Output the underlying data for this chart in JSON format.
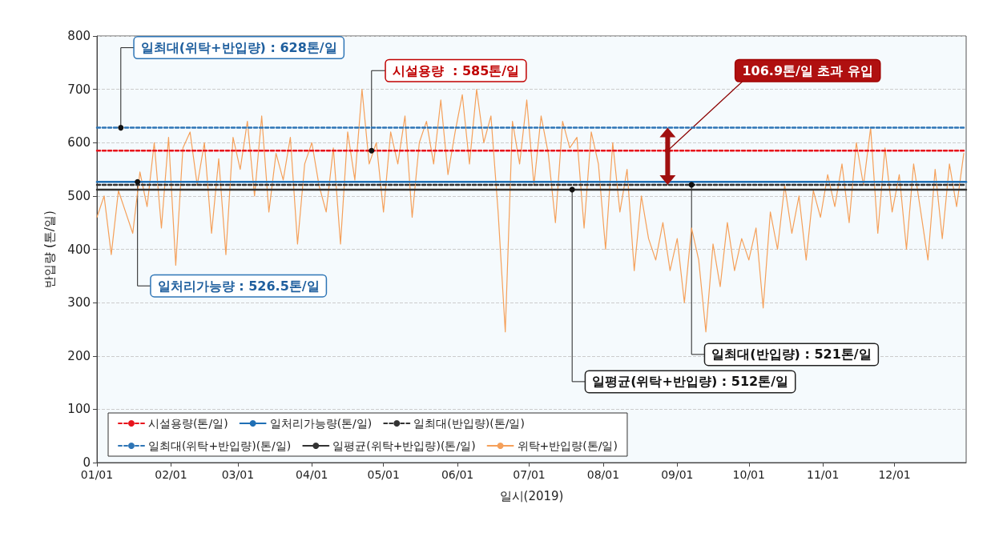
{
  "chart_data": {
    "type": "line",
    "xlabel": "일시(2019)",
    "ylabel": "반입량 (톤/일)",
    "xlim": [
      "2019-01-01",
      "2019-12-31"
    ],
    "xticks": [
      {
        "value": "2019-01-01",
        "label": "01/01"
      },
      {
        "value": "2019-02-01",
        "label": "02/01"
      },
      {
        "value": "2019-03-01",
        "label": "03/01"
      },
      {
        "value": "2019-04-01",
        "label": "04/01"
      },
      {
        "value": "2019-05-01",
        "label": "05/01"
      },
      {
        "value": "2019-06-01",
        "label": "06/01"
      },
      {
        "value": "2019-07-01",
        "label": "07/01"
      },
      {
        "value": "2019-08-01",
        "label": "08/01"
      },
      {
        "value": "2019-09-01",
        "label": "09/01"
      },
      {
        "value": "2019-10-01",
        "label": "10/01"
      },
      {
        "value": "2019-11-01",
        "label": "11/01"
      },
      {
        "value": "2019-12-01",
        "label": "12/01"
      }
    ],
    "ylim": [
      0,
      800
    ],
    "yticks": [
      0,
      100,
      200,
      300,
      400,
      500,
      600,
      700,
      800
    ],
    "grid": "y",
    "legend": "bottom left",
    "marker": "none",
    "series": [
      {
        "name": "시설용량(톤/일)",
        "color": "#e8141c",
        "line_style": "dashed",
        "x": [
          "2019-01-01",
          "2019-12-31"
        ],
        "values": [
          585,
          585
        ]
      },
      {
        "name": "일처리가능량(톤/일)",
        "color": "#1f6fb5",
        "line_style": "solid",
        "x": [
          "2019-01-01",
          "2019-12-31"
        ],
        "values": [
          526.5,
          526.5
        ]
      },
      {
        "name": "일최대(반입량)(톤/일)",
        "color": "#333333",
        "line_style": "dashed",
        "x": [
          "2019-01-01",
          "2019-12-31"
        ],
        "values": [
          521,
          521
        ]
      },
      {
        "name": "일최대(위탁+반입량)(톤/일)",
        "color": "#2e75b6",
        "line_style": "dashed",
        "x": [
          "2019-01-01",
          "2019-12-31"
        ],
        "values": [
          628,
          628
        ]
      },
      {
        "name": "일평균(위탁+반입량)(톤/일)",
        "color": "#333333",
        "line_style": "solid",
        "x": [
          "2019-01-01",
          "2019-12-31"
        ],
        "values": [
          512,
          512
        ]
      },
      {
        "name": "위탁+반입량(톤/일)",
        "color": "#f5a05a",
        "line_style": "solid",
        "x": [
          "2019-01-01",
          "2019-01-04",
          "2019-01-07",
          "2019-01-10",
          "2019-01-13",
          "2019-01-16",
          "2019-01-19",
          "2019-01-22",
          "2019-01-25",
          "2019-01-28",
          "2019-01-31",
          "2019-02-03",
          "2019-02-06",
          "2019-02-09",
          "2019-02-12",
          "2019-02-15",
          "2019-02-18",
          "2019-02-21",
          "2019-02-24",
          "2019-02-27",
          "2019-03-02",
          "2019-03-05",
          "2019-03-08",
          "2019-03-11",
          "2019-03-14",
          "2019-03-17",
          "2019-03-20",
          "2019-03-23",
          "2019-03-26",
          "2019-03-29",
          "2019-04-01",
          "2019-04-04",
          "2019-04-07",
          "2019-04-10",
          "2019-04-13",
          "2019-04-16",
          "2019-04-19",
          "2019-04-22",
          "2019-04-25",
          "2019-04-28",
          "2019-05-01",
          "2019-05-04",
          "2019-05-07",
          "2019-05-10",
          "2019-05-13",
          "2019-05-16",
          "2019-05-19",
          "2019-05-22",
          "2019-05-25",
          "2019-05-28",
          "2019-05-31",
          "2019-06-03",
          "2019-06-06",
          "2019-06-09",
          "2019-06-12",
          "2019-06-15",
          "2019-06-18",
          "2019-06-21",
          "2019-06-24",
          "2019-06-27",
          "2019-06-30",
          "2019-07-03",
          "2019-07-06",
          "2019-07-09",
          "2019-07-12",
          "2019-07-15",
          "2019-07-18",
          "2019-07-21",
          "2019-07-24",
          "2019-07-27",
          "2019-07-30",
          "2019-08-02",
          "2019-08-05",
          "2019-08-08",
          "2019-08-11",
          "2019-08-14",
          "2019-08-17",
          "2019-08-20",
          "2019-08-23",
          "2019-08-26",
          "2019-08-29",
          "2019-09-01",
          "2019-09-04",
          "2019-09-07",
          "2019-09-10",
          "2019-09-13",
          "2019-09-16",
          "2019-09-19",
          "2019-09-22",
          "2019-09-25",
          "2019-09-28",
          "2019-10-01",
          "2019-10-04",
          "2019-10-07",
          "2019-10-10",
          "2019-10-13",
          "2019-10-16",
          "2019-10-19",
          "2019-10-22",
          "2019-10-25",
          "2019-10-28",
          "2019-10-31",
          "2019-11-03",
          "2019-11-06",
          "2019-11-09",
          "2019-11-12",
          "2019-11-15",
          "2019-11-18",
          "2019-11-21",
          "2019-11-24",
          "2019-11-27",
          "2019-11-30",
          "2019-12-03",
          "2019-12-06",
          "2019-12-09",
          "2019-12-12",
          "2019-12-15",
          "2019-12-18",
          "2019-12-21",
          "2019-12-24",
          "2019-12-27",
          "2019-12-30"
        ],
        "values": [
          460,
          500,
          390,
          510,
          470,
          430,
          545,
          480,
          600,
          440,
          610,
          370,
          590,
          620,
          520,
          600,
          430,
          570,
          390,
          610,
          550,
          640,
          500,
          650,
          470,
          580,
          530,
          610,
          410,
          560,
          600,
          520,
          470,
          590,
          410,
          620,
          530,
          700,
          560,
          600,
          470,
          620,
          560,
          650,
          460,
          600,
          640,
          560,
          680,
          540,
          620,
          690,
          560,
          700,
          600,
          650,
          470,
          245,
          640,
          560,
          680,
          520,
          650,
          580,
          450,
          640,
          590,
          610,
          440,
          620,
          560,
          400,
          600,
          470,
          550,
          360,
          500,
          420,
          380,
          450,
          360,
          420,
          300,
          440,
          380,
          245,
          410,
          330,
          450,
          360,
          420,
          380,
          440,
          290,
          470,
          400,
          520,
          430,
          500,
          380,
          510,
          460,
          540,
          480,
          560,
          450,
          600,
          520,
          628,
          430,
          590,
          470,
          540,
          400,
          560,
          470,
          380,
          550,
          420,
          560,
          480,
          580
        ]
      }
    ],
    "annotations": [
      {
        "text": "일최대(위탁+반입량) : 628톤/일",
        "x": "2019-01-11",
        "y": 628
      },
      {
        "text": "시설용량  : 585톤/일",
        "x": "2019-04-26",
        "y": 585
      },
      {
        "text": "일처리가능량 : 526.5톤/일",
        "x": "2019-01-18",
        "y": 526.5
      },
      {
        "text": "일평균(위탁+반입량) : 512톤/일",
        "x": "2019-07-19",
        "y": 512
      },
      {
        "text": "일최대(반입량) : 521톤/일",
        "x": "2019-09-07",
        "y": 521
      },
      {
        "text": "106.9톤/일 초과 유입",
        "x": "2019-08-28",
        "y": 585
      }
    ]
  }
}
